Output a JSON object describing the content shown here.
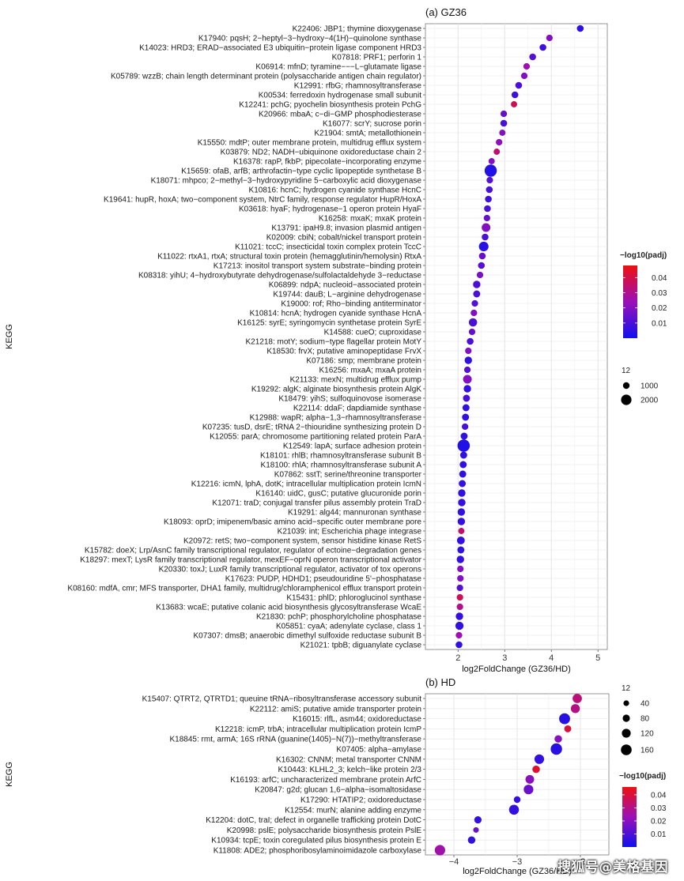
{
  "chart_data": [
    {
      "type": "scatter",
      "title": "(a) GZ36",
      "xlabel": "log2FoldChange (GZ36/HD)",
      "ylabel": "KEGG",
      "xlim": [
        1.3,
        5.2
      ],
      "xticks": [
        2,
        3,
        4,
        5
      ],
      "grid": true,
      "color_legend": {
        "title": "−log10(padj)",
        "min": 0,
        "max": 0.048,
        "ticks": [
          0.01,
          0.02,
          0.03,
          0.04
        ],
        "low_color": "#1010ee",
        "high_color": "#ee1010"
      },
      "size_legend": {
        "title": "12",
        "values": [
          1000,
          2000
        ]
      },
      "points": [
        {
          "label": "K22406: JBP1; thymine dioxygenase",
          "x": 4.62,
          "size": 350,
          "padj": 0.005
        },
        {
          "label": "K17940: pqsH; 2−heptyl−3−hydroxy−4(1H)−quinolone synthase",
          "x": 3.96,
          "size": 300,
          "padj": 0.02
        },
        {
          "label": "K14023: HRD3; ERAD−associated E3 ubiquitin−protein ligase component HRD3",
          "x": 3.82,
          "size": 350,
          "padj": 0.008
        },
        {
          "label": "K07818: PRF1; perforin 1",
          "x": 3.6,
          "size": 350,
          "padj": 0.012
        },
        {
          "label": "K06914: mfnD; tyramine−−−L−glutamate ligase",
          "x": 3.47,
          "size": 300,
          "padj": 0.025
        },
        {
          "label": "K05789: wzzB; chain length determinant protein (polysaccharide antigen chain regulator)",
          "x": 3.42,
          "size": 300,
          "padj": 0.02
        },
        {
          "label": "K12991: rfbG; rhamnosyltransferase",
          "x": 3.3,
          "size": 350,
          "padj": 0.01
        },
        {
          "label": "K00534: ferredoxin hydrogenase small subunit",
          "x": 3.22,
          "size": 350,
          "padj": 0.008
        },
        {
          "label": "K12241: pchG; pyochelin biosynthesis protein PchG",
          "x": 3.2,
          "size": 250,
          "padj": 0.038
        },
        {
          "label": "K20966: mbaA; c−di−GMP phosphodiesterase",
          "x": 2.98,
          "size": 300,
          "padj": 0.015
        },
        {
          "label": "K16077: scrY; sucrose porin",
          "x": 2.98,
          "size": 350,
          "padj": 0.01
        },
        {
          "label": "K21904: smtA; metallothionein",
          "x": 2.95,
          "size": 250,
          "padj": 0.02
        },
        {
          "label": "K15550: mdtP; outer membrane protein, multidrug efflux system",
          "x": 2.88,
          "size": 300,
          "padj": 0.022
        },
        {
          "label": "K03879: ND2; NADH−ubiquinone oxidoreductase chain 2",
          "x": 2.83,
          "size": 250,
          "padj": 0.035
        },
        {
          "label": "K16378: rapP, fkbP; pipecolate−incorporating enzyme",
          "x": 2.72,
          "size": 250,
          "padj": 0.02
        },
        {
          "label": "K15659: ofaB, arfB; arthrofactin−type cyclic lipopeptide synthetase B",
          "x": 2.7,
          "size": 2400,
          "padj": 0.003
        },
        {
          "label": "K18071: mhpco; 2−methyl−3−hydroxypyridine 5−carboxylic acid dioxygenase",
          "x": 2.68,
          "size": 300,
          "padj": 0.012
        },
        {
          "label": "K10816: hcnC; hydrogen cyanide synthase HcnC",
          "x": 2.67,
          "size": 350,
          "padj": 0.01
        },
        {
          "label": "K19641: hupR, hoxA; two−component system, NtrC family, response regulator HupR/HoxA",
          "x": 2.65,
          "size": 350,
          "padj": 0.008
        },
        {
          "label": "K03618: hyaF; hydrogenase−1 operon protein HyaF",
          "x": 2.63,
          "size": 350,
          "padj": 0.01
        },
        {
          "label": "K16258: mxaK; mxaK protein",
          "x": 2.62,
          "size": 300,
          "padj": 0.015
        },
        {
          "label": "K13791: ipaH9.8; invasion plasmid antigen",
          "x": 2.6,
          "size": 850,
          "padj": 0.02
        },
        {
          "label": "K02009: cbiN; cobalt/nickel transport protein",
          "x": 2.58,
          "size": 350,
          "padj": 0.01
        },
        {
          "label": "K11021: tccC; insecticidal toxin complex protein TccC",
          "x": 2.55,
          "size": 1200,
          "padj": 0.004
        },
        {
          "label": "K11022: rtxA1, rtxA; structural toxin protein (hemagglutinin/hemolysin) RtxA",
          "x": 2.52,
          "size": 350,
          "padj": 0.015
        },
        {
          "label": "K17213: inositol transport system substrate−binding protein",
          "x": 2.5,
          "size": 350,
          "padj": 0.012
        },
        {
          "label": "K08318: yihU; 4−hydroxybutyrate dehydrogenase/sulfolactaldehyde 3−reductase",
          "x": 2.47,
          "size": 300,
          "padj": 0.018
        },
        {
          "label": "K06899: ndpA; nucleoid−associated protein",
          "x": 2.4,
          "size": 500,
          "padj": 0.01
        },
        {
          "label": "K19744: dauB; L−arginine dehydrogenase",
          "x": 2.4,
          "size": 400,
          "padj": 0.01
        },
        {
          "label": "K19000: rof; Rho−binding antiterminator",
          "x": 2.36,
          "size": 300,
          "padj": 0.012
        },
        {
          "label": "K10814: hcnA; hydrogen cyanide synthase HcnA",
          "x": 2.34,
          "size": 300,
          "padj": 0.02
        },
        {
          "label": "K16125: syrE; syringomycin synthetase protein SyrE",
          "x": 2.32,
          "size": 750,
          "padj": 0.01
        },
        {
          "label": "K14588: cueO; cuproxidase",
          "x": 2.3,
          "size": 300,
          "padj": 0.015
        },
        {
          "label": "K21218: motY; sodium−type flagellar protein MotY",
          "x": 2.26,
          "size": 350,
          "padj": 0.01
        },
        {
          "label": "K18530: frvX; putative aminopeptidase FrvX",
          "x": 2.22,
          "size": 300,
          "padj": 0.02
        },
        {
          "label": "K07186: smp; membrane protein",
          "x": 2.22,
          "size": 500,
          "padj": 0.006
        },
        {
          "label": "K16256: mxaA; mxaA protein",
          "x": 2.2,
          "size": 300,
          "padj": 0.012
        },
        {
          "label": "K21133: mexN; multidrug efflux pump",
          "x": 2.2,
          "size": 850,
          "padj": 0.02
        },
        {
          "label": "K19292: algK; alginate biosynthesis protein AlgK",
          "x": 2.2,
          "size": 500,
          "padj": 0.006
        },
        {
          "label": "K18479: yihS; sulfoquinovose isomerase",
          "x": 2.18,
          "size": 400,
          "padj": 0.01
        },
        {
          "label": "K22114: ddaF; dapdiamide synthase",
          "x": 2.17,
          "size": 400,
          "padj": 0.006
        },
        {
          "label": "K12988: wapR; alpha−1,3−rhamnosyltransferase",
          "x": 2.16,
          "size": 400,
          "padj": 0.006
        },
        {
          "label": "K07235: tusD, dsrE; tRNA 2−thiouridine synthesizing protein D",
          "x": 2.15,
          "size": 300,
          "padj": 0.01
        },
        {
          "label": "K12055: parA; chromosome partitioning related protein ParA",
          "x": 2.13,
          "size": 400,
          "padj": 0.006
        },
        {
          "label": "K12549: lapA; surface adhesion protein",
          "x": 2.12,
          "size": 2500,
          "padj": 0.003
        },
        {
          "label": "K18101: rhlB; rhamnosyltransferase subunit B",
          "x": 2.12,
          "size": 400,
          "padj": 0.006
        },
        {
          "label": "K18100: rhlA; rhamnosyltransferase subunit A",
          "x": 2.11,
          "size": 400,
          "padj": 0.006
        },
        {
          "label": "K07862: sstT; serine/threonine transporter",
          "x": 2.1,
          "size": 400,
          "padj": 0.006
        },
        {
          "label": "K12216: icmN, lphA, dotK; intracellular multiplication protein IcmN",
          "x": 2.09,
          "size": 400,
          "padj": 0.006
        },
        {
          "label": "K16140: uidC, gusC; putative glucuronide porin",
          "x": 2.08,
          "size": 500,
          "padj": 0.006
        },
        {
          "label": "K12071: traD; conjugal transfer pilus assembly protein TraD",
          "x": 2.08,
          "size": 500,
          "padj": 0.006
        },
        {
          "label": "K19291: alg44; mannuronan synthase",
          "x": 2.07,
          "size": 500,
          "padj": 0.006
        },
        {
          "label": "K18093: oprD; imipenem/basic amino acid−specific outer membrane pore",
          "x": 2.07,
          "size": 500,
          "padj": 0.006
        },
        {
          "label": "K21039: int; Escherichia phage integrase",
          "x": 2.07,
          "size": 250,
          "padj": 0.035
        },
        {
          "label": "K20972: retS; two−component system, sensor histidine kinase RetS",
          "x": 2.06,
          "size": 600,
          "padj": 0.006
        },
        {
          "label": "K15782: doeX; Lrp/AsnC family transcriptional regulator, regulator of ectoine−degradation genes",
          "x": 2.06,
          "size": 400,
          "padj": 0.006
        },
        {
          "label": "K18297: mexT; LysR family transcriptional regulator, mexEF−oprN operon transcriptional activator",
          "x": 2.05,
          "size": 500,
          "padj": 0.006
        },
        {
          "label": "K20330: toxJ; LuxR family transcriptional regulator, activator of tox operons",
          "x": 2.05,
          "size": 300,
          "padj": 0.02
        },
        {
          "label": "K17623: PUDP, HDHD1; pseudouridine 5'−phosphatase",
          "x": 2.05,
          "size": 300,
          "padj": 0.02
        },
        {
          "label": "K08160: mdfA, cmr; MFS transporter, DHA1 family, multidrug/chloramphenicol efflux transport protein",
          "x": 2.04,
          "size": 300,
          "padj": 0.012
        },
        {
          "label": "K15431: phlD; phloroglucinol synthase",
          "x": 2.04,
          "size": 300,
          "padj": 0.038
        },
        {
          "label": "K13683: wcaE; putative colanic acid biosynthesis glycosyltransferase WcaE",
          "x": 2.04,
          "size": 300,
          "padj": 0.03
        },
        {
          "label": "K21830: pchP; phosphorylcholine phosphatase",
          "x": 2.03,
          "size": 500,
          "padj": 0.006
        },
        {
          "label": "K05851: cyaA; adenylate cyclase, class 1",
          "x": 2.03,
          "size": 700,
          "padj": 0.006
        },
        {
          "label": "K07307: dmsB; anaerobic dimethyl sulfoxide reductase subunit B",
          "x": 2.02,
          "size": 300,
          "padj": 0.025
        },
        {
          "label": "K21021: tpbB; diguanylate cyclase",
          "x": 2.02,
          "size": 350,
          "padj": 0.006
        }
      ]
    },
    {
      "type": "scatter",
      "title": "(b) HD",
      "xlabel": "log2FoldChange (GZ36/HD)",
      "ylabel": "KEGG",
      "xlim": [
        -4.45,
        -1.55
      ],
      "xticks": [
        -4,
        -3,
        -2
      ],
      "grid": true,
      "color_legend": {
        "title": "−log10(padj)",
        "min": 0,
        "max": 0.046,
        "ticks": [
          0.01,
          0.02,
          0.03,
          0.04
        ],
        "low_color": "#1010ee",
        "high_color": "#ee1010"
      },
      "size_legend": {
        "title": "12",
        "values": [
          40,
          80,
          120,
          160
        ]
      },
      "points": [
        {
          "label": "K15407: QTRT2, QTRTD1; queuine tRNA−ribosyltransferase accessory subunit",
          "x": -2.05,
          "size": 90,
          "padj": 0.032
        },
        {
          "label": "K22112: amiS; putative amide transporter protein",
          "x": -2.08,
          "size": 80,
          "padj": 0.03
        },
        {
          "label": "K16015: rlfL, asm44; oxidoreductase",
          "x": -2.25,
          "size": 150,
          "padj": 0.004
        },
        {
          "label": "K12218: icmP, trbA; intracellular multiplication protein IcmP",
          "x": -2.2,
          "size": 30,
          "padj": 0.04
        },
        {
          "label": "K18845: rmt, armA; 16S rRNA (guanine(1405)−N(7))−methyltransferase",
          "x": -2.35,
          "size": 40,
          "padj": 0.02
        },
        {
          "label": "K07405: alpha−amylase",
          "x": -2.38,
          "size": 170,
          "padj": 0.004
        },
        {
          "label": "K16302: CNNM; metal transporter CNNM",
          "x": -2.65,
          "size": 100,
          "padj": 0.006
        },
        {
          "label": "K10443: KLHL2_3; kelch−like protein 2/3",
          "x": -2.7,
          "size": 40,
          "padj": 0.042
        },
        {
          "label": "K16193: arfC; uncharacterized membrane protein ArfC",
          "x": -2.8,
          "size": 70,
          "padj": 0.02
        },
        {
          "label": "K20847: g2d; glucan 1,6−alpha−isomaltosidase",
          "x": -2.82,
          "size": 100,
          "padj": 0.015
        },
        {
          "label": "K17290: HTATIP2; oxidoreductase",
          "x": -3.0,
          "size": 25,
          "padj": 0.006
        },
        {
          "label": "K12554: murN; alanine adding enzyme",
          "x": -3.05,
          "size": 110,
          "padj": 0.006
        },
        {
          "label": "K12204: dotC, traI; defect in organelle trafficking protein DotC",
          "x": -3.62,
          "size": 35,
          "padj": 0.006
        },
        {
          "label": "K20998: pslE; polysaccharide biosynthesis protein PslE",
          "x": -3.65,
          "size": 10,
          "padj": 0.015
        },
        {
          "label": "K10934: tcpE; toxin coregulated pilus biosynthesis protein E",
          "x": -3.72,
          "size": 40,
          "padj": 0.006
        },
        {
          "label": "K11808: ADE2; phosphoribosylaminoimidazole carboxylase",
          "x": -4.22,
          "size": 130,
          "padj": 0.025
        }
      ]
    }
  ],
  "watermark": "搜狐号@美格基因"
}
